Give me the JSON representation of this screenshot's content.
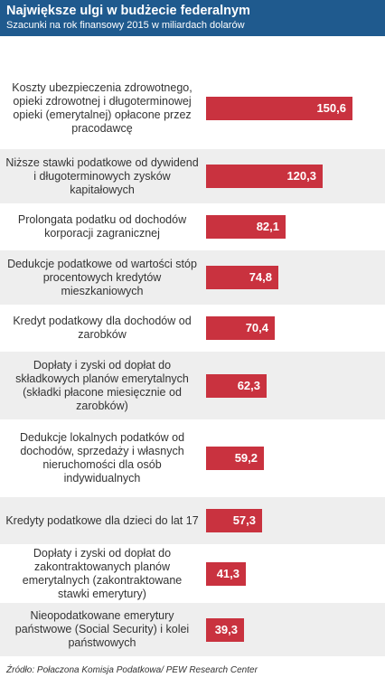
{
  "chart_data": {
    "type": "bar",
    "orientation": "horizontal",
    "title": "Największe ulgi w budżecie federalnym",
    "subtitle": "Szacunki na rok finansowy 2015 w miliardach dolarów",
    "categories": [
      "Koszty ubezpieczenia zdrowotnego, opieki zdrowotnej i długoterminowej opieki (emerytalnej) opłacone przez pracodawcę",
      "Niższe stawki podatkowe od dywidend i długoterminowych zysków kapitałowych",
      "Prolongata podatku od dochodów korporacji zagranicznej",
      "Dedukcje podatkowe od wartości stóp procentowych kredytów mieszkaniowych",
      "Kredyt podatkowy dla dochodów od zarobków",
      "Dopłaty i zyski od dopłat do składkowych planów emerytalnych (składki płacone miesięcznie od zarobków)",
      "Dedukcje lokalnych podatków od dochodów, sprzedaży i własnych nieruchomości dla osób indywidualnych",
      "Kredyty podatkowe dla dzieci do lat 17",
      "Dopłaty i zyski od dopłat do zakontraktowanych planów emerytalnych (zakontraktowane stawki emerytury)",
      "Nieopodatkowane emerytury państwowe (Social Security) i kolei państwowych"
    ],
    "values": [
      150.6,
      120.3,
      82.1,
      74.8,
      70.4,
      62.3,
      59.2,
      57.3,
      41.3,
      39.3
    ],
    "value_labels": [
      "150,6",
      "120,3",
      "82,1",
      "74,8",
      "70,4",
      "62,3",
      "59,2",
      "57,3",
      "41,3",
      "39,3"
    ],
    "bar_color": "#c9323f",
    "grid": false,
    "legend": "none"
  },
  "source": "Źródło: Połaczona Komisja Podatkowa/ PEW Research Center",
  "colors": {
    "header": "#1f5a8e",
    "bar": "#c9323f",
    "shade": "#eeeeee"
  }
}
